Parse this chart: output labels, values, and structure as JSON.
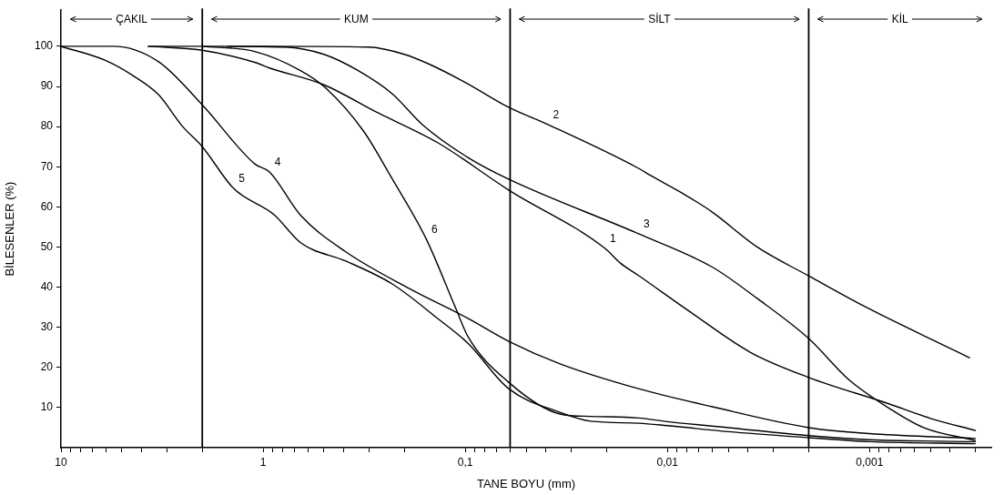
{
  "chart_data": {
    "type": "line",
    "xlabel": "TANE BOYU (mm)",
    "ylabel": "BİLESENLER (%)",
    "log": "x",
    "grid": false,
    "marker": "none",
    "line_style": "solid",
    "xlim": [
      10,
      0.00025
    ],
    "ylim": [
      0,
      109
    ],
    "xticks": [
      {
        "value": 10,
        "label": "10"
      },
      {
        "value": 9,
        "label": null
      },
      {
        "value": 8,
        "label": null
      },
      {
        "value": 7,
        "label": null
      },
      {
        "value": 6,
        "label": null
      },
      {
        "value": 5,
        "label": null
      },
      {
        "value": 4,
        "label": null
      },
      {
        "value": 3,
        "label": null
      },
      {
        "value": 2,
        "label": null
      },
      {
        "value": 1,
        "label": "1"
      },
      {
        "value": 0.9,
        "label": null
      },
      {
        "value": 0.8,
        "label": null
      },
      {
        "value": 0.7,
        "label": null
      },
      {
        "value": 0.6,
        "label": null
      },
      {
        "value": 0.5,
        "label": null
      },
      {
        "value": 0.4,
        "label": null
      },
      {
        "value": 0.3,
        "label": null
      },
      {
        "value": 0.2,
        "label": null
      },
      {
        "value": 0.1,
        "label": "0,1"
      },
      {
        "value": 0.09,
        "label": null
      },
      {
        "value": 0.08,
        "label": null
      },
      {
        "value": 0.07,
        "label": null
      },
      {
        "value": 0.06,
        "label": null
      },
      {
        "value": 0.05,
        "label": null
      },
      {
        "value": 0.04,
        "label": null
      },
      {
        "value": 0.03,
        "label": null
      },
      {
        "value": 0.02,
        "label": null
      },
      {
        "value": 0.01,
        "label": "0,01"
      },
      {
        "value": 0.009,
        "label": null
      },
      {
        "value": 0.008,
        "label": null
      },
      {
        "value": 0.007,
        "label": null
      },
      {
        "value": 0.006,
        "label": null
      },
      {
        "value": 0.005,
        "label": null
      },
      {
        "value": 0.004,
        "label": null
      },
      {
        "value": 0.003,
        "label": null
      },
      {
        "value": 0.002,
        "label": null
      },
      {
        "value": 0.001,
        "label": "0,001"
      },
      {
        "value": 0.0009,
        "label": null
      },
      {
        "value": 0.0008,
        "label": null
      },
      {
        "value": 0.0007,
        "label": null
      },
      {
        "value": 0.0006,
        "label": null
      },
      {
        "value": 0.0005,
        "label": null
      },
      {
        "value": 0.0004,
        "label": null
      },
      {
        "value": 0.0003,
        "label": null
      }
    ],
    "yticks": [
      10,
      20,
      30,
      40,
      50,
      60,
      70,
      80,
      90,
      100
    ],
    "series": [
      {
        "color": "#000000",
        "x": [
          3.7,
          2,
          1.1,
          0.93,
          0.5,
          0.275,
          0.137,
          0.061,
          0.0204,
          0.0171,
          0.0139,
          0.0077,
          0.0039,
          0.002,
          0.00081,
          0.0005,
          0.0003
        ],
        "values": [
          100,
          99,
          96,
          94.6,
          90.4,
          83.6,
          76,
          64.2,
          49.7,
          46,
          42.9,
          33.8,
          23.8,
          17.5,
          11,
          7.3,
          4.3
        ]
      },
      {
        "color": "#000000",
        "x": [
          3.7,
          1,
          0.3,
          0.2,
          0.15,
          0.1,
          0.061,
          0.039,
          0.0139,
          0.0121,
          0.0085,
          0.006,
          0.0036,
          0.002,
          0.00106,
          0.00032
        ],
        "values": [
          100,
          100,
          99.8,
          98,
          95.5,
          91,
          84.8,
          80.5,
          69.6,
          67.8,
          63.5,
          58.7,
          50,
          42.8,
          35.2,
          22.4
        ]
      },
      {
        "color": "#000000",
        "x": [
          1.5,
          0.78,
          0.5,
          0.34,
          0.23,
          0.163,
          0.097,
          0.061,
          0.0139,
          0.006,
          0.0036,
          0.002,
          0.00127,
          0.00081,
          0.00054,
          0.0003
        ],
        "values": [
          100,
          99.8,
          98,
          94,
          88.2,
          80.5,
          72.3,
          66.9,
          53.3,
          45,
          37.2,
          27.2,
          17,
          10,
          5,
          1.8
        ]
      },
      {
        "color": "#000000",
        "x": [
          10,
          5.5,
          3.3,
          2,
          1.1,
          0.93,
          0.65,
          0.39,
          0.19,
          0.097,
          0.061,
          0.034,
          0.0139,
          0.006,
          0.002,
          0.001,
          0.0003
        ],
        "values": [
          100,
          100,
          96.2,
          85.4,
          70.7,
          68.7,
          57.8,
          48.8,
          39.7,
          32.2,
          26.5,
          20.9,
          14.7,
          10.2,
          5,
          3.5,
          2.3
        ]
      },
      {
        "color": "#000000",
        "x": [
          10,
          6.1,
          4.4,
          3.3,
          2.5,
          2,
          1.4,
          0.88,
          0.65,
          0.39,
          0.23,
          0.137,
          0.097,
          0.061,
          0.034,
          0.024,
          0.0139,
          0.01,
          0.005,
          0.002,
          0.001,
          0.0003
        ],
        "values": [
          100,
          96.6,
          92.7,
          88,
          80,
          75,
          64.6,
          58,
          51,
          46.5,
          40.8,
          32.2,
          26,
          14.7,
          8.8,
          6.6,
          6.1,
          5.5,
          4,
          2.5,
          1.5,
          1
        ]
      },
      {
        "color": "#000000",
        "x": [
          2,
          1.1,
          0.65,
          0.49,
          0.32,
          0.23,
          0.156,
          0.111,
          0.097,
          0.061,
          0.034,
          0.024,
          0.0139,
          0.01,
          0.005,
          0.002,
          0.001,
          0.0003
        ],
        "values": [
          100,
          98.7,
          93.9,
          89.6,
          79,
          67,
          52,
          34.5,
          27.7,
          16.3,
          8.4,
          7.8,
          7.4,
          6.5,
          5,
          3,
          2,
          1.5
        ]
      }
    ],
    "ref_lines": [
      {
        "axis": "x",
        "value": 2,
        "color": "#000000"
      },
      {
        "axis": "x",
        "value": 0.06,
        "color": "#000000"
      },
      {
        "axis": "x",
        "value": 0.002,
        "color": "#000000"
      }
    ],
    "annotations": [
      "ÇAKIL",
      "KUM",
      "SİLT",
      "KİL",
      {
        "text": "1",
        "x": 0.0204,
        "y": 49.7
      },
      {
        "text": "2",
        "x": 0.039,
        "y": 80.5
      },
      {
        "text": "3",
        "x": 0.0139,
        "y": 53.3
      },
      {
        "text": "4",
        "x": 0.93,
        "y": 68.7
      },
      {
        "text": "5",
        "x": 1.4,
        "y": 64.6
      },
      {
        "text": "6",
        "x": 0.156,
        "y": 52
      }
    ]
  }
}
